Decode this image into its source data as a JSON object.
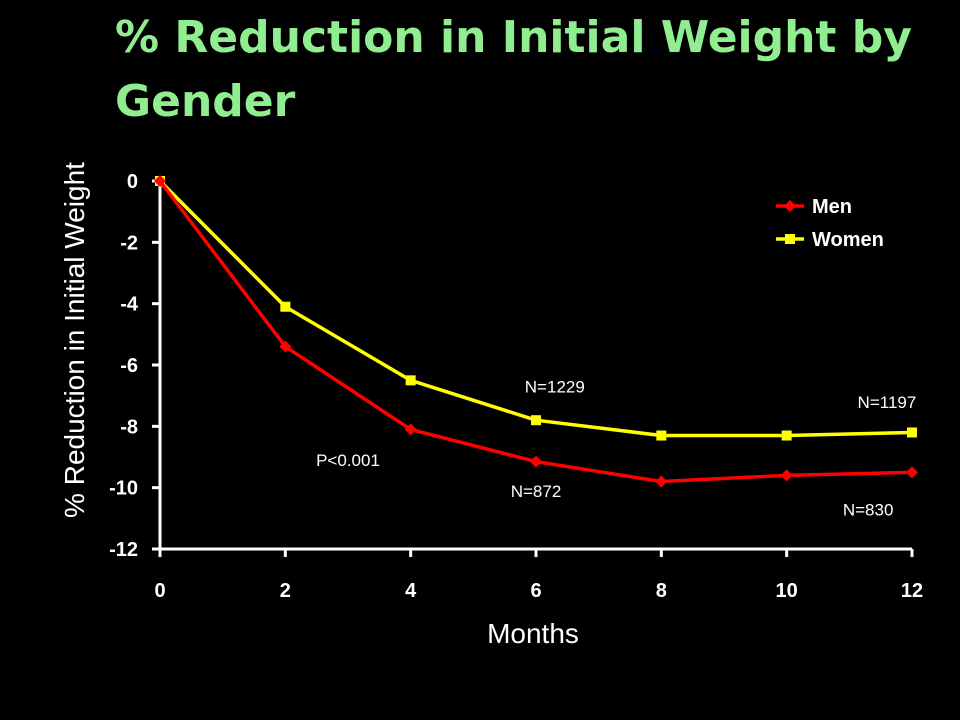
{
  "title": "% Reduction in Initial Weight by Gender",
  "colors": {
    "background": "#000000",
    "title": "#90ee90",
    "text": "#ffffff",
    "axis": "#ffffff",
    "men": "#ff0000",
    "women": "#ffff00"
  },
  "chart_data": {
    "type": "line",
    "xlabel": "Months",
    "ylabel": "% Reduction in Initial Weight",
    "x": [
      0,
      2,
      4,
      6,
      8,
      10,
      12
    ],
    "xticks": [
      0,
      2,
      4,
      6,
      8,
      10,
      12
    ],
    "yticks": [
      0,
      -2,
      -4,
      -6,
      -8,
      -10,
      -12
    ],
    "xlim": [
      0,
      12
    ],
    "ylim": [
      -12,
      0
    ],
    "grid": false,
    "legend_position": "top-right",
    "series": [
      {
        "name": "Men",
        "marker": "diamond",
        "color": "#ff0000",
        "values": [
          0,
          -5.4,
          -8.1,
          -9.15,
          -9.8,
          -9.6,
          -9.5
        ]
      },
      {
        "name": "Women",
        "marker": "square",
        "color": "#ffff00",
        "values": [
          0,
          -4.1,
          -6.5,
          -7.8,
          -8.3,
          -8.3,
          -8.2
        ]
      }
    ],
    "annotations": [
      {
        "text": "P<0.001",
        "x": 3.0,
        "y": -9.3
      },
      {
        "text": "N=1229",
        "x": 6.3,
        "y": -6.9
      },
      {
        "text": "N=872",
        "x": 6.0,
        "y": -10.3
      },
      {
        "text": "N=1197",
        "x": 11.6,
        "y": -7.4
      },
      {
        "text": "N=830",
        "x": 11.3,
        "y": -10.9
      }
    ]
  }
}
